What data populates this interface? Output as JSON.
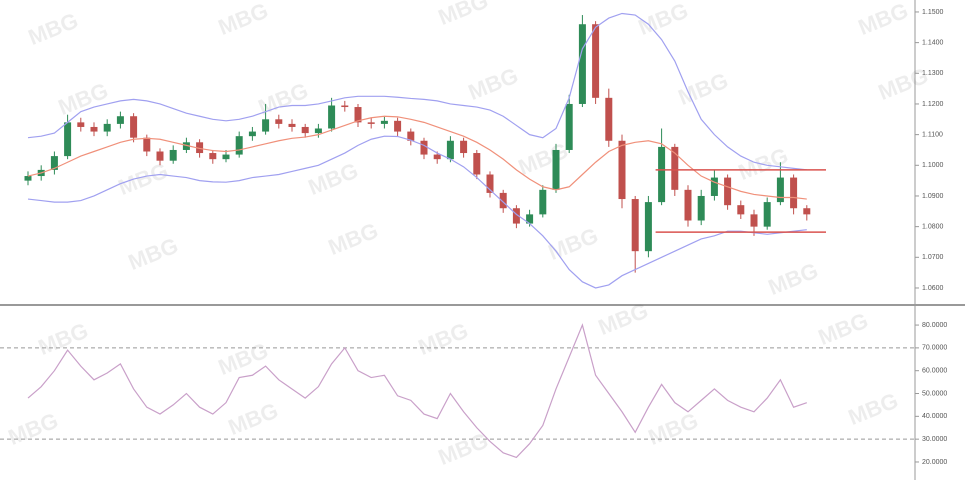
{
  "watermark": "MBG",
  "chart_data": [
    {
      "type": "candlestick",
      "open": [
        1.095,
        1.0965,
        1.0985,
        1.103,
        1.114,
        1.1125,
        1.111,
        1.1135,
        1.116,
        1.109,
        1.1045,
        1.1015,
        1.105,
        1.1075,
        1.104,
        1.102,
        1.1035,
        1.1095,
        1.111,
        1.115,
        1.1135,
        1.1125,
        1.1105,
        1.112,
        1.1195,
        1.119,
        1.114,
        1.1135,
        1.1145,
        1.111,
        1.108,
        1.1035,
        1.102,
        1.108,
        1.104,
        1.097,
        1.091,
        1.086,
        1.081,
        1.084,
        1.092,
        1.105,
        1.12,
        1.146,
        1.122,
        1.108,
        1.089,
        1.072,
        1.088,
        1.106,
        1.092,
        1.082,
        1.09,
        1.096,
        1.087,
        1.084,
        1.08,
        1.088,
        1.096,
        1.086
      ],
      "high": [
        1.098,
        1.1,
        1.1045,
        1.1165,
        1.1155,
        1.114,
        1.115,
        1.1175,
        1.117,
        1.11,
        1.1055,
        1.1065,
        1.109,
        1.1085,
        1.105,
        1.105,
        1.111,
        1.1125,
        1.12,
        1.1165,
        1.115,
        1.1135,
        1.1135,
        1.122,
        1.121,
        1.12,
        1.1155,
        1.116,
        1.1155,
        1.112,
        1.109,
        1.1045,
        1.1095,
        1.109,
        1.105,
        1.098,
        1.092,
        1.087,
        1.0855,
        1.0935,
        1.107,
        1.123,
        1.149,
        1.147,
        1.125,
        1.11,
        1.09,
        1.09,
        1.112,
        1.107,
        1.0935,
        1.092,
        1.0985,
        1.097,
        1.0885,
        1.0855,
        1.0895,
        1.101,
        1.097,
        1.087
      ],
      "low": [
        1.0935,
        1.095,
        1.097,
        1.102,
        1.111,
        1.1095,
        1.1095,
        1.112,
        1.1075,
        1.103,
        1.1,
        1.1005,
        1.104,
        1.1025,
        1.1005,
        1.101,
        1.1025,
        1.108,
        1.11,
        1.112,
        1.111,
        1.109,
        1.109,
        1.111,
        1.1175,
        1.1125,
        1.112,
        1.112,
        1.1095,
        1.1065,
        1.102,
        1.1005,
        1.101,
        1.1025,
        1.0955,
        1.0895,
        1.0845,
        1.0795,
        1.08,
        1.083,
        1.091,
        1.104,
        1.119,
        1.12,
        1.106,
        1.086,
        1.065,
        1.07,
        1.087,
        1.09,
        1.08,
        1.0805,
        1.0885,
        1.0855,
        1.0825,
        1.077,
        1.079,
        1.087,
        1.084,
        1.082
      ],
      "close": [
        1.0965,
        1.0985,
        1.103,
        1.114,
        1.1125,
        1.111,
        1.1135,
        1.116,
        1.109,
        1.1045,
        1.1015,
        1.105,
        1.1075,
        1.104,
        1.102,
        1.1035,
        1.1095,
        1.111,
        1.115,
        1.1135,
        1.1125,
        1.1105,
        1.112,
        1.1195,
        1.119,
        1.114,
        1.1135,
        1.1145,
        1.111,
        1.108,
        1.1035,
        1.102,
        1.108,
        1.104,
        1.097,
        1.091,
        1.086,
        1.081,
        1.084,
        1.092,
        1.105,
        1.12,
        1.146,
        1.122,
        1.108,
        1.089,
        1.072,
        1.088,
        1.106,
        1.092,
        1.082,
        1.09,
        1.096,
        1.087,
        1.084,
        1.08,
        1.088,
        1.096,
        1.086,
        1.084
      ],
      "up_color": "#2e8b57",
      "down_color": "#c0504d",
      "bands": {
        "upper": [
          1.109,
          1.1095,
          1.1105,
          1.114,
          1.1175,
          1.119,
          1.12,
          1.121,
          1.1215,
          1.121,
          1.12,
          1.1185,
          1.117,
          1.116,
          1.115,
          1.1145,
          1.115,
          1.116,
          1.1175,
          1.119,
          1.1195,
          1.1195,
          1.12,
          1.121,
          1.122,
          1.1225,
          1.1225,
          1.1225,
          1.1222,
          1.1218,
          1.1215,
          1.121,
          1.12,
          1.1195,
          1.119,
          1.118,
          1.116,
          1.113,
          1.11,
          1.109,
          1.112,
          1.122,
          1.138,
          1.145,
          1.148,
          1.1495,
          1.149,
          1.146,
          1.141,
          1.134,
          1.124,
          1.115,
          1.11,
          1.106,
          1.103,
          1.101,
          1.1,
          1.0995,
          1.099,
          1.0985
        ],
        "middle": [
          1.0965,
          1.0975,
          1.099,
          1.101,
          1.103,
          1.1045,
          1.106,
          1.1075,
          1.1085,
          1.1088,
          1.1085,
          1.1075,
          1.1065,
          1.1055,
          1.1048,
          1.1045,
          1.105,
          1.106,
          1.107,
          1.108,
          1.1088,
          1.1092,
          1.11,
          1.1115,
          1.113,
          1.1145,
          1.1155,
          1.116,
          1.1158,
          1.115,
          1.114,
          1.1125,
          1.111,
          1.1095,
          1.1075,
          1.105,
          1.102,
          1.0985,
          1.0955,
          1.093,
          1.092,
          1.093,
          1.097,
          1.101,
          1.1045,
          1.1065,
          1.1075,
          1.108,
          1.107,
          1.104,
          1.1,
          1.0965,
          1.0945,
          1.093,
          1.0915,
          1.0905,
          1.09,
          1.0895,
          1.0895,
          1.089
        ],
        "lower": [
          1.089,
          1.0885,
          1.088,
          1.088,
          1.0885,
          1.09,
          1.092,
          1.094,
          1.0955,
          1.0965,
          1.097,
          1.0965,
          1.096,
          1.095,
          1.0946,
          1.0945,
          1.095,
          1.096,
          1.0965,
          1.097,
          1.098,
          1.099,
          1.1,
          1.102,
          1.104,
          1.1065,
          1.1085,
          1.1095,
          1.1094,
          1.1082,
          1.1065,
          1.104,
          1.102,
          1.0995,
          1.096,
          1.092,
          1.088,
          1.084,
          1.081,
          1.077,
          1.072,
          1.066,
          1.062,
          1.06,
          1.061,
          1.064,
          1.066,
          1.068,
          1.07,
          1.072,
          1.074,
          1.076,
          1.077,
          1.0785,
          1.0785,
          1.078,
          1.0775,
          1.078,
          1.0785,
          1.079
        ],
        "band_color": "#a0a0f0",
        "middle_color": "#f0907a"
      },
      "levels": [
        1.0985,
        1.0782
      ],
      "level_color": "#d9534f",
      "ylim": [
        1.0551,
        1.1539
      ],
      "yticks": [
        {
          "value": 1.15,
          "label": "1.1500"
        },
        {
          "value": 1.14,
          "label": "1.1400"
        },
        {
          "value": 1.13,
          "label": "1.1300"
        },
        {
          "value": 1.12,
          "label": "1.1200"
        },
        {
          "value": 1.11,
          "label": "1.1100"
        },
        {
          "value": 1.1,
          "label": "1.1000"
        },
        {
          "value": 1.09,
          "label": "1.0900"
        },
        {
          "value": 1.08,
          "label": "1.0800"
        },
        {
          "value": 1.07,
          "label": "1.0700"
        },
        {
          "value": 1.06,
          "label": "1.0600"
        }
      ]
    },
    {
      "type": "line",
      "values": [
        48,
        53,
        60,
        69,
        62,
        56,
        59,
        63,
        52,
        44,
        41,
        45,
        50,
        44,
        41,
        46,
        57,
        58,
        62,
        56,
        52,
        48,
        53,
        63,
        70,
        60,
        57,
        58,
        49,
        47,
        41,
        39,
        50,
        42,
        35,
        29,
        24,
        22,
        28,
        36,
        52,
        66,
        80,
        58,
        50,
        42,
        33,
        44,
        54,
        46,
        42,
        47,
        52,
        47,
        44,
        42,
        48,
        56,
        44,
        46
      ],
      "color": "#c9a0c9",
      "levels": [
        70,
        30
      ],
      "level_color": "#999999",
      "ylim": [
        12.1,
        86.6
      ],
      "yticks": [
        {
          "value": 80,
          "label": "80.0000"
        },
        {
          "value": 70,
          "label": "70.0000"
        },
        {
          "value": 60,
          "label": "60.0000"
        },
        {
          "value": 50,
          "label": "50.0000"
        },
        {
          "value": 40,
          "label": "40.0000"
        },
        {
          "value": 30,
          "label": "30.0000"
        },
        {
          "value": 20,
          "label": "20.0000"
        }
      ]
    }
  ]
}
